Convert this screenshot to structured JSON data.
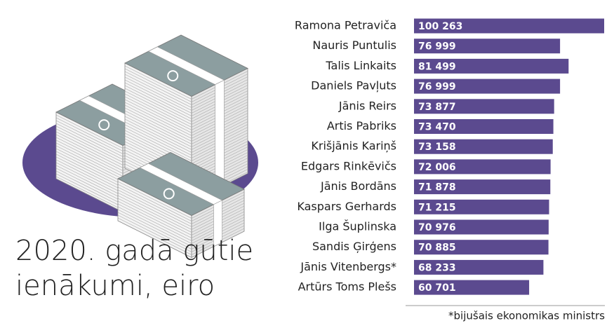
{
  "chart_data": {
    "type": "bar",
    "orientation": "horizontal",
    "title": [
      "2020. gadā gūtie",
      "ienākumi, eiro"
    ],
    "footnote": "*bijušais ekonomikas ministrs",
    "color": "#5b4a8f",
    "categories": [
      "Ramona Petraviča",
      "Nauris Puntulis",
      "Talis Linkaits",
      "Daniels Pavļuts",
      "Jānis Reirs",
      "Artis Pabriks",
      "Krišjānis Kariņš",
      "Edgars Rinkēvičs",
      "Jānis Bordāns",
      "Kaspars Gerhards",
      "Ilga Šuplinska",
      "Sandis Ģirģens",
      "Jānis Vitenbergs*",
      "Artūrs Toms Plešs"
    ],
    "values": [
      100263,
      76999,
      81499,
      76999,
      73877,
      73470,
      73158,
      72006,
      71878,
      71215,
      70976,
      70885,
      68233,
      60701
    ],
    "value_labels": [
      "100 263",
      "76 999",
      "81 499",
      "76 999",
      "73 877",
      "73 470",
      "73 158",
      "72 006",
      "71 878",
      "71 215",
      "70 976",
      "70 885",
      "68 233",
      "60 701"
    ]
  }
}
